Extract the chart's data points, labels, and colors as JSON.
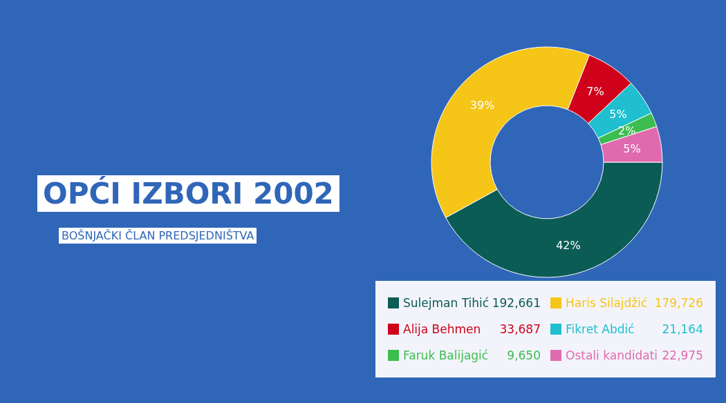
{
  "chart_data": {
    "type": "donut",
    "title": "OPĆI IZBORI 2002",
    "subtitle": "BOŠNJAČKI ČLAN PREDSJEDNIŠTVA",
    "categories": [
      "Sulejman Tihić",
      "Haris Silajdžić",
      "Alija Behmen",
      "Fikret Abdić",
      "Faruk Balijagić",
      "Ostali kandidati"
    ],
    "values": [
      42,
      39,
      7,
      5,
      2,
      5
    ],
    "colors": [
      "#0b5c55",
      "#f5c518",
      "#d0021b",
      "#1fbfcf",
      "#3cbd4f",
      "#e06aae"
    ],
    "value_labels": [
      "42%",
      "39%",
      "7%",
      "5%",
      "2%",
      "5%"
    ],
    "annotations": [
      {
        "text": "192,661",
        "x": "Sulejman Tihić"
      },
      {
        "text": "179,726",
        "x": "Haris Silajdžić"
      },
      {
        "text": "33,687",
        "x": "Alija Behmen"
      },
      {
        "text": "21,164",
        "x": "Fikret Abdić"
      },
      {
        "text": "9,650",
        "x": "Faruk Balijagić"
      },
      {
        "text": "22,975",
        "x": "Ostali kandidati"
      }
    ],
    "legend": "bottom"
  }
}
